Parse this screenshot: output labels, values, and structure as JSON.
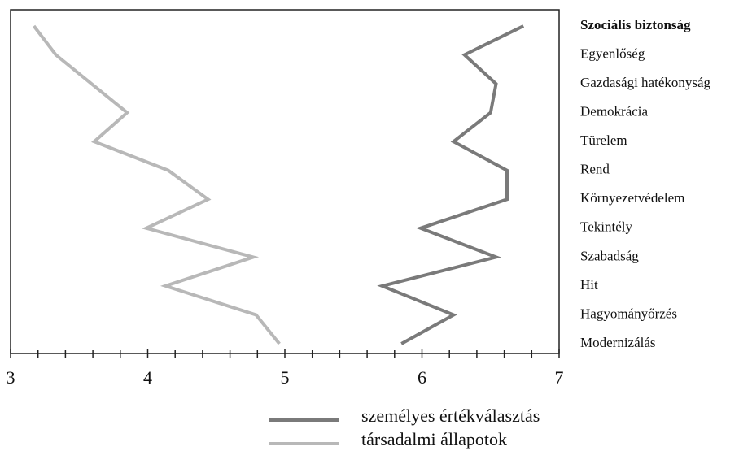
{
  "chart_data": {
    "type": "line",
    "orientation": "horizontal",
    "categories": [
      "Szociális biztonság",
      "Egyenlőség",
      "Gazdasági hatékonyság",
      "Demokrácia",
      "Türelem",
      "Rend",
      "Környezetvédelem",
      "Tekintély",
      "Szabadság",
      "Hit",
      "Hagyományőrzés",
      "Modernizálás"
    ],
    "series": [
      {
        "name": "személyes értékválasztás",
        "color": "#7a7a7a",
        "values": [
          6.74,
          6.31,
          6.54,
          6.5,
          6.23,
          6.62,
          6.62,
          5.99,
          6.54,
          5.71,
          6.23,
          5.85
        ]
      },
      {
        "name": "társadalmi állapotok",
        "color": "#b8b8b8",
        "values": [
          3.17,
          3.33,
          3.59,
          3.85,
          3.61,
          4.15,
          4.44,
          3.99,
          4.77,
          4.13,
          4.79,
          4.96
        ]
      }
    ],
    "xlim": [
      3,
      7
    ],
    "xticks": [
      3,
      4,
      5,
      6,
      7
    ],
    "xminorticks": [
      3.2,
      3.4,
      3.6,
      3.8,
      4.2,
      4.4,
      4.6,
      4.8,
      5.2,
      5.4,
      5.6,
      5.8,
      6.2,
      6.4,
      6.6,
      6.8
    ],
    "highlight_category": 0
  }
}
